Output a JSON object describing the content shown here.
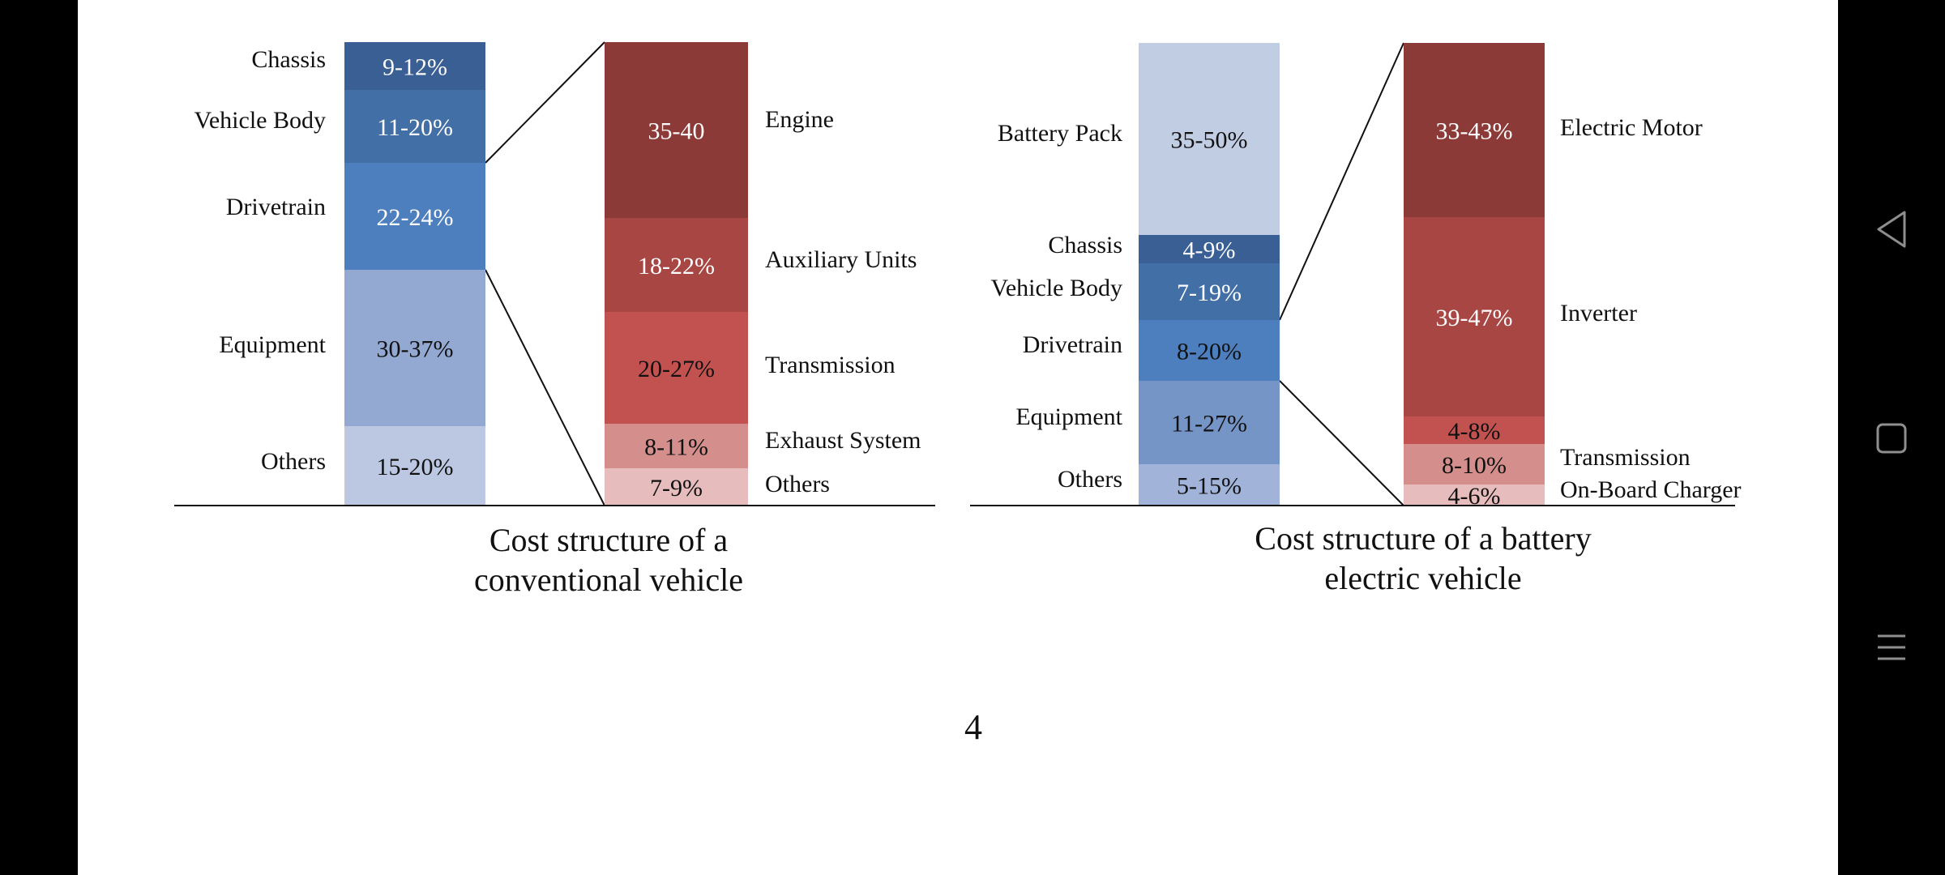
{
  "page_number": "4",
  "navigation": {
    "back_icon": "back-triangle-icon",
    "home_icon": "home-square-icon",
    "menu_icon": "menu-lines-icon"
  },
  "colors": {
    "blue": [
      "#3a5f94",
      "#436fa7",
      "#4d7fbe",
      "#94a9d2",
      "#bcc8e1"
    ],
    "ev_blue": [
      "#c1cde3",
      "#3a5f94",
      "#436fa7",
      "#4d7fbe",
      "#7595c7",
      "#a2b3da"
    ],
    "red": [
      "#8c3a37",
      "#a84644",
      "#c25250",
      "#d48f8d",
      "#e6bdbc"
    ],
    "ev_red": [
      "#8c3a37",
      "#a84644",
      "#c25250",
      "#d48f8d",
      "#e6bdbc"
    ]
  },
  "chart_data": [
    {
      "type": "bar",
      "title": "Cost structure of a\nconventional vehicle",
      "stacked": true,
      "main_bar": {
        "segments": [
          {
            "category": "Chassis",
            "label": "9-12%"
          },
          {
            "category": "Vehicle Body",
            "label": "11-20%"
          },
          {
            "category": "Drivetrain",
            "label": "22-24%"
          },
          {
            "category": "Equipment",
            "label": "30-37%"
          },
          {
            "category": "Others",
            "label": "15-20%"
          }
        ]
      },
      "breakdown_of": "Drivetrain",
      "breakdown_bar": {
        "segments": [
          {
            "category": "Engine",
            "label": "35-40"
          },
          {
            "category": "Auxiliary Units",
            "label": "18-22%"
          },
          {
            "category": "Transmission",
            "label": "20-27%"
          },
          {
            "category": "Exhaust System",
            "label": "8-11%"
          },
          {
            "category": "Others",
            "label": "7-9%"
          }
        ]
      }
    },
    {
      "type": "bar",
      "title": "Cost structure of a  battery\nelectric vehicle",
      "stacked": true,
      "main_bar": {
        "segments": [
          {
            "category": "Battery Pack",
            "label": "35-50%"
          },
          {
            "category": "Chassis",
            "label": "4-9%"
          },
          {
            "category": "Vehicle Body",
            "label": "7-19%"
          },
          {
            "category": "Drivetrain",
            "label": "8-20%"
          },
          {
            "category": "Equipment",
            "label": "11-27%"
          },
          {
            "category": "Others",
            "label": "5-15%"
          }
        ]
      },
      "breakdown_of": "Drivetrain",
      "breakdown_bar": {
        "segments": [
          {
            "category": "Electric Motor",
            "label": "33-43%"
          },
          {
            "category": "Inverter",
            "label": "39-47%"
          },
          {
            "category": "",
            "label": "4-8%"
          },
          {
            "category": "Transmission",
            "label": "8-10%"
          },
          {
            "category": "On-Board Charger",
            "label": "4-6%"
          }
        ]
      }
    }
  ]
}
